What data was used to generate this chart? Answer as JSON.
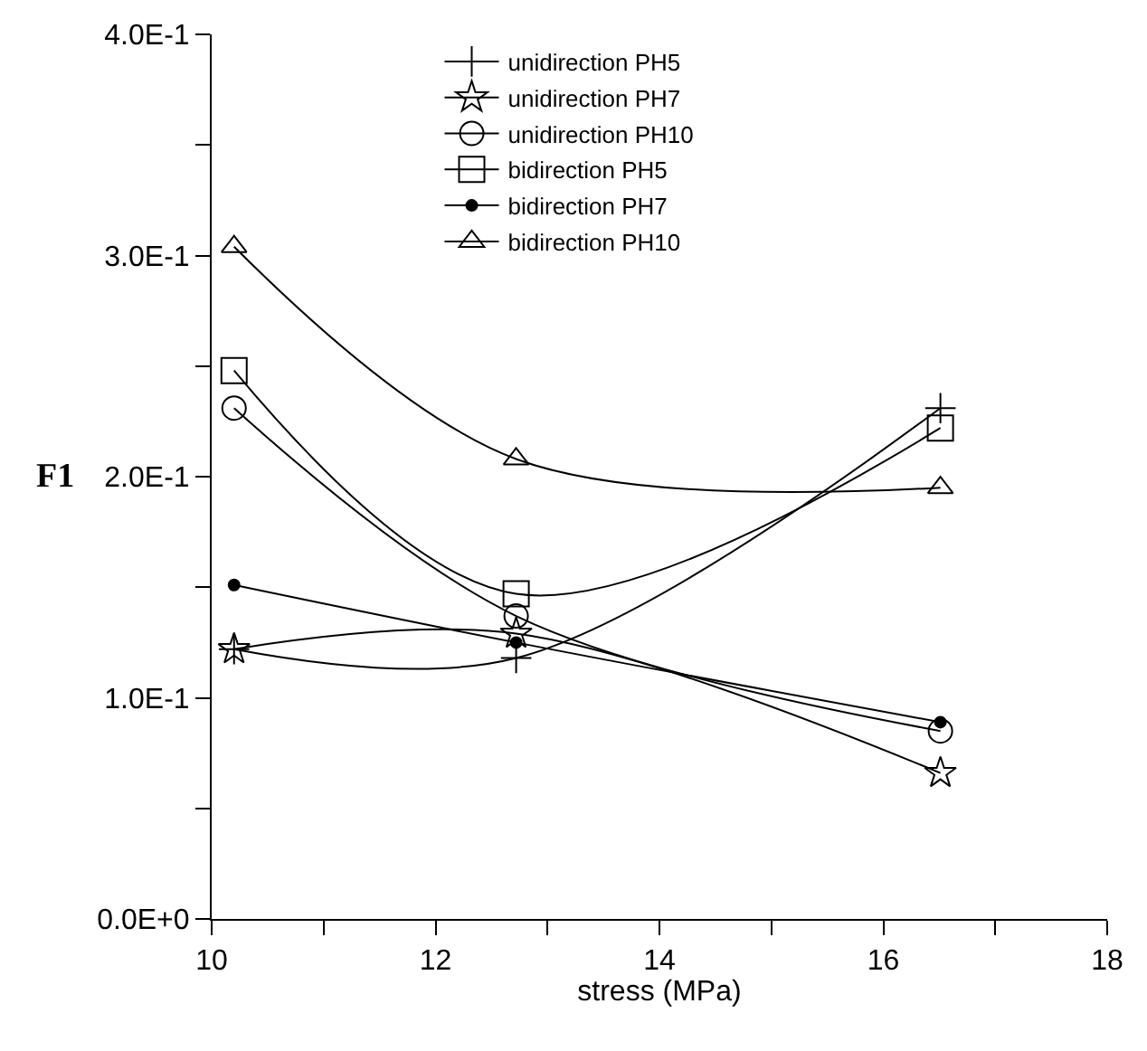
{
  "chart_data": {
    "type": "line",
    "xlabel": "stress (MPa)",
    "ylabel": "F1",
    "x": [
      10.2,
      12.72,
      16.51
    ],
    "series": [
      {
        "name": "unidirection PH5",
        "color": "#000000",
        "marker": "cross",
        "values": [
          0.122,
          0.118,
          0.231
        ]
      },
      {
        "name": "unidirection PH7",
        "color": "#000000",
        "marker": "star",
        "values": [
          0.122,
          0.129,
          0.066
        ]
      },
      {
        "name": "unidirection PH10",
        "color": "#000000",
        "marker": "circle",
        "values": [
          0.231,
          0.137,
          0.085
        ]
      },
      {
        "name": "bidirection PH5",
        "color": "#000000",
        "marker": "square",
        "values": [
          0.248,
          0.147,
          0.222
        ]
      },
      {
        "name": "bidirection PH7",
        "color": "#000000",
        "marker": "dot",
        "values": [
          0.151,
          0.125,
          0.089
        ]
      },
      {
        "name": "bidirection PH10",
        "color": "#000000",
        "marker": "triangle",
        "values": [
          0.304,
          0.208,
          0.195
        ]
      }
    ],
    "xlim": [
      10,
      18
    ],
    "ylim": [
      0,
      0.4
    ],
    "xticks": [
      10,
      {
        "value": 11,
        "label": null
      },
      12,
      {
        "value": 13,
        "label": null
      },
      14,
      {
        "value": 15,
        "label": null
      },
      16,
      {
        "value": 17,
        "label": null
      },
      18
    ],
    "yticks": [
      {
        "value": 0,
        "label": "0.0E+0"
      },
      {
        "value": 0.05,
        "label": null
      },
      {
        "value": 0.1,
        "label": "1.0E-1"
      },
      {
        "value": 0.15,
        "label": null
      },
      {
        "value": 0.2,
        "label": "2.0E-1"
      },
      {
        "value": 0.25,
        "label": null
      },
      {
        "value": 0.3,
        "label": "3.0E-1"
      },
      {
        "value": 0.35,
        "label": null
      },
      {
        "value": 0.4,
        "label": "4.0E-1"
      }
    ],
    "grid": false,
    "legend": "top",
    "line_style": "solid"
  }
}
